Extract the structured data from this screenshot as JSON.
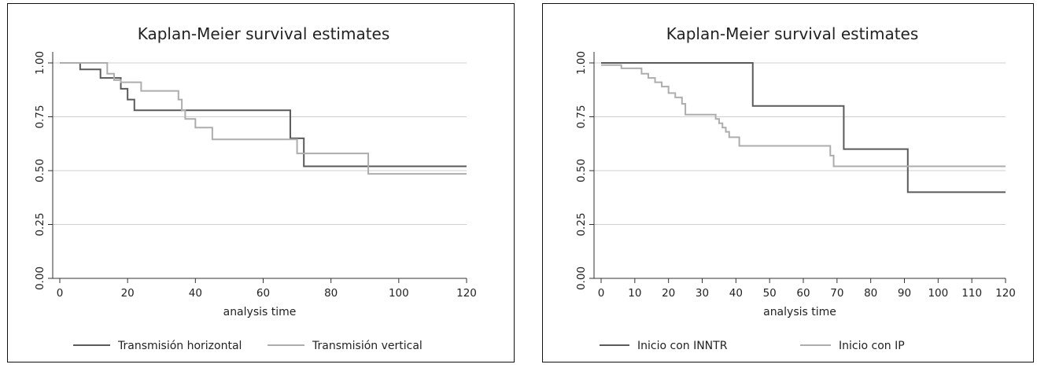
{
  "colors": {
    "dark": "#5a5a5a",
    "light": "#adadad",
    "grid": "#cfcfcf"
  },
  "chart_data": [
    {
      "type": "line",
      "title": "Kaplan-Meier survival estimates",
      "xlabel": "analysis time",
      "ylabel": "",
      "xlim": [
        0,
        120
      ],
      "ylim": [
        0,
        1
      ],
      "xticks": [
        "0",
        "20",
        "40",
        "60",
        "80",
        "100",
        "120"
      ],
      "yticks": [
        "0.00",
        "0.25",
        "0.50",
        "0.75",
        "1.00"
      ],
      "grid": true,
      "legend_position": "bottom",
      "series": [
        {
          "name": "Transmisión horizontal",
          "color": "#5a5a5a",
          "step": true,
          "x": [
            0,
            6,
            12,
            18,
            20,
            22,
            24,
            68,
            70,
            72,
            120
          ],
          "y": [
            1.0,
            0.97,
            0.93,
            0.88,
            0.83,
            0.78,
            0.78,
            0.65,
            0.65,
            0.52,
            0.52
          ]
        },
        {
          "name": "Transmisión vertical",
          "color": "#adadad",
          "step": true,
          "x": [
            0,
            14,
            16,
            18,
            24,
            35,
            36,
            37,
            40,
            45,
            70,
            91,
            120
          ],
          "y": [
            1.0,
            0.95,
            0.92,
            0.91,
            0.87,
            0.83,
            0.78,
            0.74,
            0.7,
            0.645,
            0.58,
            0.485,
            0.485
          ]
        }
      ]
    },
    {
      "type": "line",
      "title": "Kaplan-Meier survival estimates",
      "xlabel": "analysis time",
      "ylabel": "",
      "xlim": [
        0,
        120
      ],
      "ylim": [
        0,
        1
      ],
      "xticks": [
        "0",
        "10",
        "20",
        "30",
        "40",
        "50",
        "60",
        "70",
        "80",
        "90",
        "100",
        "110",
        "120"
      ],
      "yticks": [
        "0.00",
        "0.25",
        "0.50",
        "0.75",
        "1.00"
      ],
      "grid": true,
      "legend_position": "bottom",
      "series": [
        {
          "name": "Inicio con INNTR",
          "color": "#5a5a5a",
          "step": true,
          "x": [
            0,
            45,
            72,
            91,
            120
          ],
          "y": [
            1.0,
            0.8,
            0.6,
            0.4,
            0.4
          ]
        },
        {
          "name": "Inicio con IP",
          "color": "#adadad",
          "step": true,
          "x": [
            0,
            6,
            12,
            14,
            16,
            18,
            20,
            22,
            24,
            25,
            34,
            35,
            36,
            37,
            38,
            41,
            68,
            69,
            120
          ],
          "y": [
            0.99,
            0.975,
            0.95,
            0.93,
            0.91,
            0.89,
            0.86,
            0.84,
            0.81,
            0.76,
            0.74,
            0.72,
            0.7,
            0.68,
            0.655,
            0.615,
            0.57,
            0.52,
            0.52
          ]
        }
      ]
    }
  ]
}
